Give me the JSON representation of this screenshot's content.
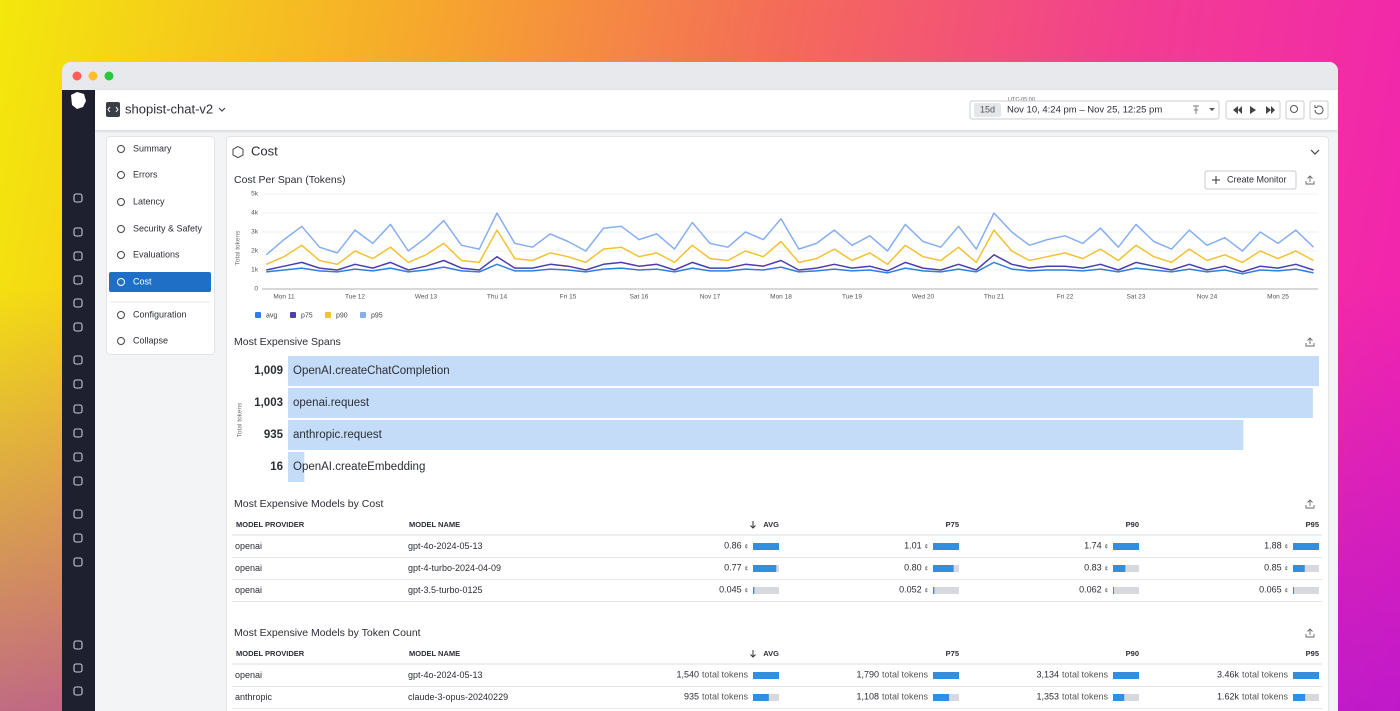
{
  "app": {
    "service": "shopist-chat-v2"
  },
  "time": {
    "timezone": "UTC-05:00",
    "preset": "15d",
    "range": "Nov 10, 4:24 pm – Nov 25, 12:25 pm"
  },
  "nav": {
    "items": [
      "Summary",
      "Errors",
      "Latency",
      "Security & Safety",
      "Evaluations",
      "Cost",
      "Configuration",
      "Collapse"
    ],
    "active": 5
  },
  "section": {
    "title": "Cost"
  },
  "create_monitor": "Create Monitor",
  "chart_data": [
    {
      "type": "line",
      "title": "Cost Per Span (Tokens)",
      "y_label": "Total tokens",
      "categories": [
        null,
        "Mon 11",
        null,
        null,
        null,
        "Tue 12",
        null,
        null,
        null,
        "Wed 13",
        null,
        null,
        null,
        "Thu 14",
        null,
        null,
        null,
        "Fri 15",
        null,
        null,
        null,
        "Sat 16",
        null,
        null,
        null,
        "Nov 17",
        null,
        null,
        null,
        "Mon 18",
        null,
        null,
        null,
        "Tue 19",
        null,
        null,
        null,
        "Wed 20",
        null,
        null,
        null,
        "Thu 21",
        null,
        null,
        null,
        "Fri 22",
        null,
        null,
        null,
        "Sat 23",
        null,
        null,
        null,
        "Nov 24",
        null,
        null,
        null,
        "Mon 25",
        null,
        null
      ],
      "series": [
        {
          "name": "avg",
          "color": "#2f7fdc",
          "values": [
            900,
            1000,
            1100,
            950,
            900,
            1050,
            950,
            1100,
            900,
            1000,
            1150,
            950,
            900,
            1300,
            950,
            950,
            1050,
            1000,
            900,
            1050,
            1100,
            1000,
            1050,
            900,
            1100,
            950,
            950,
            1050,
            1000,
            1150,
            900,
            950,
            1050,
            950,
            1000,
            850,
            1100,
            950,
            900,
            1050,
            900,
            1400,
            1050,
            950,
            1000,
            1000,
            950,
            1050,
            900,
            1100,
            1000,
            900,
            1050,
            900,
            1000,
            800,
            1000,
            950,
            1050,
            850
          ]
        },
        {
          "name": "p75",
          "color": "#4b3fae",
          "values": [
            1000,
            1200,
            1400,
            1100,
            1000,
            1300,
            1100,
            1400,
            1000,
            1200,
            1500,
            1100,
            1000,
            1700,
            1100,
            1100,
            1300,
            1200,
            1000,
            1300,
            1400,
            1200,
            1300,
            1000,
            1400,
            1100,
            1100,
            1300,
            1200,
            1500,
            1000,
            1100,
            1300,
            1100,
            1200,
            950,
            1400,
            1100,
            1000,
            1300,
            1000,
            1800,
            1300,
            1100,
            1200,
            1200,
            1100,
            1300,
            1000,
            1400,
            1200,
            1000,
            1300,
            1000,
            1200,
            900,
            1200,
            1100,
            1300,
            1000
          ]
        },
        {
          "name": "p90",
          "color": "#f1c232",
          "values": [
            1300,
            1700,
            2300,
            1500,
            1300,
            2000,
            1600,
            2200,
            1400,
            1800,
            2400,
            1500,
            1400,
            3100,
            1600,
            1500,
            1900,
            1700,
            1400,
            2100,
            2200,
            1700,
            1900,
            1400,
            2300,
            1600,
            1500,
            2000,
            1700,
            2500,
            1400,
            1600,
            2100,
            1500,
            1900,
            1300,
            2300,
            1700,
            1500,
            2200,
            1400,
            3100,
            2000,
            1500,
            1700,
            1900,
            1600,
            2100,
            1500,
            2300,
            1700,
            1400,
            2100,
            1500,
            1800,
            1400,
            2000,
            1600,
            2000,
            1500
          ]
        },
        {
          "name": "p95",
          "color": "#86aff0",
          "values": [
            1800,
            2600,
            3300,
            2200,
            1900,
            3100,
            2400,
            3400,
            2000,
            2700,
            3600,
            2300,
            2100,
            4000,
            2400,
            2200,
            2900,
            2500,
            2000,
            3200,
            3300,
            2600,
            2900,
            2100,
            3500,
            2400,
            2200,
            3000,
            2600,
            3700,
            2100,
            2400,
            3100,
            2300,
            2800,
            2000,
            3400,
            2500,
            2200,
            3300,
            2100,
            4000,
            3000,
            2300,
            2600,
            2800,
            2400,
            3200,
            2200,
            3400,
            2500,
            2100,
            3100,
            2300,
            2700,
            2000,
            3000,
            2400,
            3100,
            2200
          ]
        }
      ],
      "ylim": [
        0,
        5000
      ],
      "yticks": [
        0,
        {
          "value": 1000,
          "label": "1k"
        },
        {
          "value": 2000,
          "label": "2k"
        },
        {
          "value": 3000,
          "label": "3k"
        },
        {
          "value": 4000,
          "label": "4k"
        },
        {
          "value": 5000,
          "label": "5k"
        }
      ],
      "grid": true,
      "legend": "bottom-left"
    },
    {
      "type": "bar",
      "horizontal": true,
      "title": "Most Expensive Spans",
      "y_label": "Total tokens",
      "color": "#c4dcf8",
      "categories": [
        "OpenAI.createChatCompletion",
        "openai.request",
        "anthropic.request",
        "OpenAI.createEmbedding"
      ],
      "values": [
        1009,
        1003,
        935,
        16
      ],
      "value_labels": [
        "1,009",
        "1,003",
        "935",
        "16"
      ]
    }
  ],
  "tables": [
    {
      "title": "Most Expensive Models by Cost",
      "unit": "¢",
      "sort": {
        "column": 2,
        "direction": "desc"
      },
      "columns": [
        "MODEL PROVIDER",
        "MODEL NAME",
        "AVG",
        "P75",
        "P90",
        "P95"
      ],
      "rows": [
        [
          "openai",
          "gpt-4o-2024-05-13",
          {
            "value": 0.86,
            "label": "0.86"
          },
          {
            "value": 1.01,
            "label": "1.01"
          },
          {
            "value": 1.74,
            "label": "1.74"
          },
          {
            "value": 1.88,
            "label": "1.88"
          }
        ],
        [
          "openai",
          "gpt-4-turbo-2024-04-09",
          {
            "value": 0.77,
            "label": "0.77"
          },
          {
            "value": 0.8,
            "label": "0.80"
          },
          {
            "value": 0.83,
            "label": "0.83"
          },
          {
            "value": 0.85,
            "label": "0.85"
          }
        ],
        [
          "openai",
          "gpt-3.5-turbo-0125",
          {
            "value": 0.045,
            "label": "0.045"
          },
          {
            "value": 0.052,
            "label": "0.052"
          },
          {
            "value": 0.062,
            "label": "0.062"
          },
          {
            "value": 0.065,
            "label": "0.065"
          }
        ]
      ]
    },
    {
      "title": "Most Expensive Models by Token Count",
      "unit": "total tokens",
      "sort": {
        "column": 2,
        "direction": "desc"
      },
      "columns": [
        "MODEL PROVIDER",
        "MODEL NAME",
        "AVG",
        "P75",
        "P90",
        "P95"
      ],
      "rows": [
        [
          "openai",
          "gpt-4o-2024-05-13",
          {
            "value": 1540,
            "label": "1,540"
          },
          {
            "value": 1790,
            "label": "1,790"
          },
          {
            "value": 3134,
            "label": "3,134"
          },
          {
            "value": 3460,
            "label": "3.46k"
          }
        ],
        [
          "anthropic",
          "claude-3-opus-20240229",
          {
            "value": 935,
            "label": "935"
          },
          {
            "value": 1108,
            "label": "1,108"
          },
          {
            "value": 1353,
            "label": "1,353"
          },
          {
            "value": 1620,
            "label": "1.62k"
          }
        ]
      ]
    }
  ]
}
